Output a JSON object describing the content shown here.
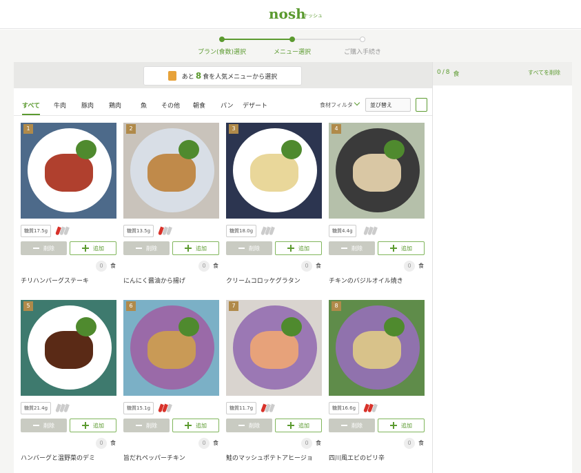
{
  "header": {
    "logo": "nosh",
    "logo_sub": "ナッシュ"
  },
  "steps": [
    {
      "label": "プラン(食数)選択",
      "done": true
    },
    {
      "label": "メニュー選択",
      "done": true
    },
    {
      "label": "ご購入手続き",
      "done": false
    }
  ],
  "banner": {
    "prefix": "あと",
    "count": 8,
    "suffix": "食を人気メニューから選択"
  },
  "tabs": [
    "すべて",
    "牛肉",
    "豚肉",
    "鶏肉",
    "魚",
    "その他",
    "朝食",
    "パン",
    "デザート"
  ],
  "active_tab": 0,
  "filter": "食材フィルタ",
  "sort": "並び替え",
  "menu": {
    "delete": "削除",
    "add": "追加",
    "unit": "食",
    "items": [
      {
        "number": 1,
        "sugar": "糖質17.5g",
        "spice": 1,
        "count": 0,
        "name": "チリハンバーグステーキ"
      },
      {
        "number": 2,
        "sugar": "糖質13.5g",
        "spice": 1,
        "count": 0,
        "name": "にんにく醤油から揚げ"
      },
      {
        "number": 3,
        "sugar": "糖質18.0g",
        "spice": 0,
        "count": 0,
        "name": "クリームコロッケグラタン"
      },
      {
        "number": 4,
        "sugar": "糖質4.4g",
        "spice": 0,
        "count": 0,
        "name": "チキンのバジルオイル焼き"
      },
      {
        "number": 5,
        "sugar": "糖質21.4g",
        "spice": 0,
        "count": 0,
        "name": "ハンバーグと温野菜のデミ"
      },
      {
        "number": 6,
        "sugar": "糖質15.1g",
        "spice": 2,
        "count": 0,
        "name": "旨だれペッパーチキン"
      },
      {
        "number": 7,
        "sugar": "糖質11.7g",
        "spice": 1,
        "count": 0,
        "name": "鮭のマッシュポテトアヒージョ"
      },
      {
        "number": 8,
        "sugar": "糖質16.6g",
        "spice": 2,
        "count": 0,
        "name": "四川風エビのピリ辛"
      }
    ]
  },
  "cart": {
    "selected": 0,
    "separator": "/",
    "total": 8,
    "unit": "食",
    "clear": "すべてを削除"
  }
}
